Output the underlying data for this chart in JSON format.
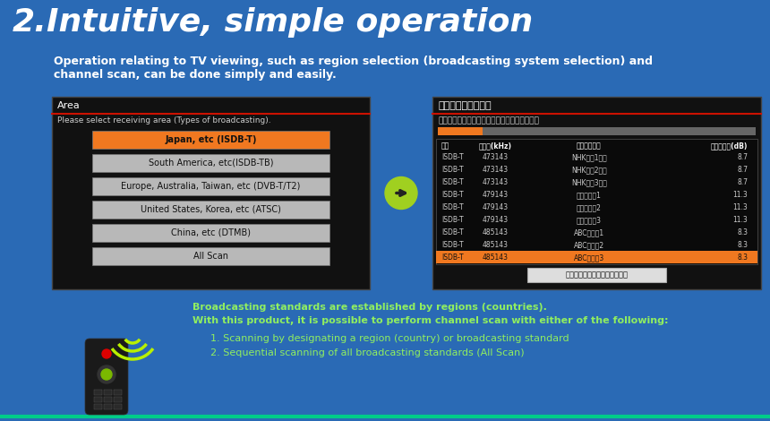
{
  "bg_color": "#2a6ab5",
  "title_number": "2.",
  "title_text": "Intuitive, simple operation",
  "subtitle_line1": "Operation relating to TV viewing, such as region selection (broadcasting system selection) and",
  "subtitle_line2": "channel scan, can be done simply and easily.",
  "left_screen": {
    "title": "Area",
    "subtitle": "Please select receiving area (Types of broadcasting).",
    "buttons": [
      {
        "label": "Japan, etc (ISDB-T)",
        "color": "#f07820",
        "text_color": "#111111"
      },
      {
        "label": "South America, etc(ISDB-TB)",
        "color": "#b8b8b8",
        "text_color": "#111111"
      },
      {
        "label": "Europe, Australia, Taiwan, etc (DVB-T/T2)",
        "color": "#b8b8b8",
        "text_color": "#111111"
      },
      {
        "label": "United States, Korea, etc (ATSC)",
        "color": "#b8b8b8",
        "text_color": "#111111"
      },
      {
        "label": "China, etc (DTMB)",
        "color": "#b8b8b8",
        "text_color": "#111111"
      },
      {
        "label": "All Scan",
        "color": "#b8b8b8",
        "text_color": "#111111"
      }
    ],
    "bg": "#111111",
    "border_color": "#555555"
  },
  "right_screen": {
    "title": "チャンネルスキャン",
    "subtitle": "受信可能なチャンネルをスキャンしています。",
    "headers": [
      "種別",
      "周波数(kHz)",
      "チャンネル名",
      "受信レベル(dB)"
    ],
    "rows": [
      {
        "type": "ISDB-T",
        "freq": "473143",
        "name": "NHKテレ1大阪",
        "level": "8.7",
        "highlighted": false
      },
      {
        "type": "ISDB-T",
        "freq": "473143",
        "name": "NHKテレ2大阪",
        "level": "8.7",
        "highlighted": false
      },
      {
        "type": "ISDB-T",
        "freq": "473143",
        "name": "NHKテレ3大阪",
        "level": "8.7",
        "highlighted": false
      },
      {
        "type": "ISDB-T",
        "freq": "479143",
        "name": "読売テレビ1",
        "level": "11.3",
        "highlighted": false
      },
      {
        "type": "ISDB-T",
        "freq": "479143",
        "name": "読売テレビ2",
        "level": "11.3",
        "highlighted": false
      },
      {
        "type": "ISDB-T",
        "freq": "479143",
        "name": "読売テレビ3",
        "level": "11.3",
        "highlighted": false
      },
      {
        "type": "ISDB-T",
        "freq": "485143",
        "name": "ABCテレビ1",
        "level": "8.3",
        "highlighted": false
      },
      {
        "type": "ISDB-T",
        "freq": "485143",
        "name": "ABCテレビ2",
        "level": "8.3",
        "highlighted": false
      },
      {
        "type": "ISDB-T",
        "freq": "485143",
        "name": "ABCテレビ3",
        "level": "8.3",
        "highlighted": true
      }
    ],
    "end_button": "チャンネルスキャンを終了する",
    "bg": "#111111"
  },
  "bottom_text_line1": "Broadcasting standards are established by regions (countries).",
  "bottom_text_line2": "With this product, it is possible to perform channel scan with either of the following:",
  "bottom_items": [
    "1. Scanning by designating a region (country) or broadcasting standard",
    "2. Sequential scanning of all broadcasting standards (All Scan)"
  ],
  "bottom_text_color": "#90ee60"
}
